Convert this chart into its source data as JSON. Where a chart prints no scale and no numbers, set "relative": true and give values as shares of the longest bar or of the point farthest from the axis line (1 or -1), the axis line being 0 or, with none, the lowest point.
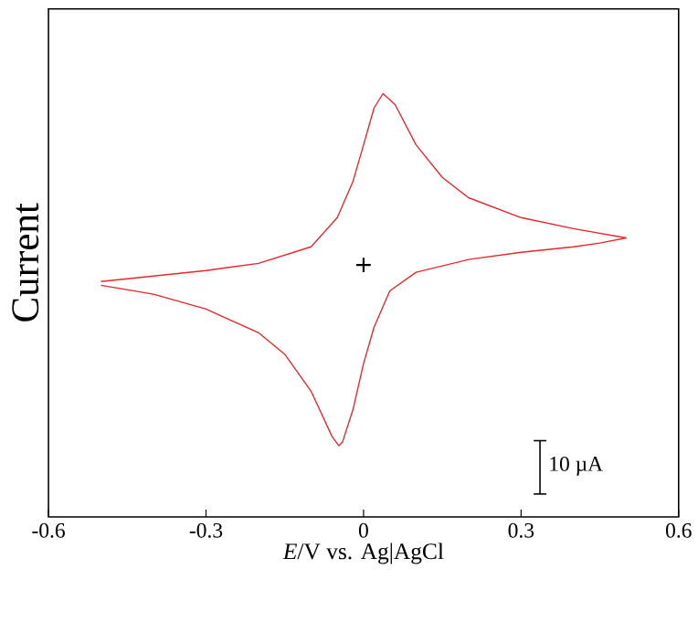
{
  "chart_data": {
    "type": "line",
    "relative": true,
    "xlabel": "*E*/V vs. Ag|AgCl",
    "ylabel": "Current",
    "xlim": [
      -0.6,
      0.6
    ],
    "xticks": [
      -0.6,
      -0.3,
      0,
      0.3,
      0.6
    ],
    "tick_labels": "x",
    "grid": false,
    "annotations": [
      "10 µA"
    ],
    "series": [
      {
        "color": "#e8262a",
        "x": [
          -0.5,
          -0.3,
          -0.2,
          -0.1,
          -0.05,
          -0.02,
          0,
          0.02,
          0.037,
          0.06,
          0.1,
          0.15,
          0.2,
          0.3,
          0.4,
          0.5,
          0.45,
          0.4,
          0.3,
          0.2,
          0.1,
          0.05,
          0.02,
          0,
          -0.02,
          -0.04,
          -0.047,
          -0.06,
          -0.1,
          -0.15,
          -0.2,
          -0.3,
          -0.4,
          -0.5
        ],
        "values": [
          0.556,
          0.582,
          0.599,
          0.638,
          0.707,
          0.793,
          0.879,
          0.966,
          1,
          0.974,
          0.879,
          0.802,
          0.754,
          0.707,
          0.681,
          0.659,
          0.647,
          0.638,
          0.625,
          0.608,
          0.578,
          0.534,
          0.448,
          0.362,
          0.254,
          0.177,
          0.168,
          0.19,
          0.297,
          0.384,
          0.435,
          0.491,
          0.526,
          0.547
        ]
      },
      {
        "type": "scatter",
        "color": "#000000",
        "marker": "cross",
        "x": [
          0
        ],
        "values": [
          0.595
        ]
      }
    ]
  }
}
